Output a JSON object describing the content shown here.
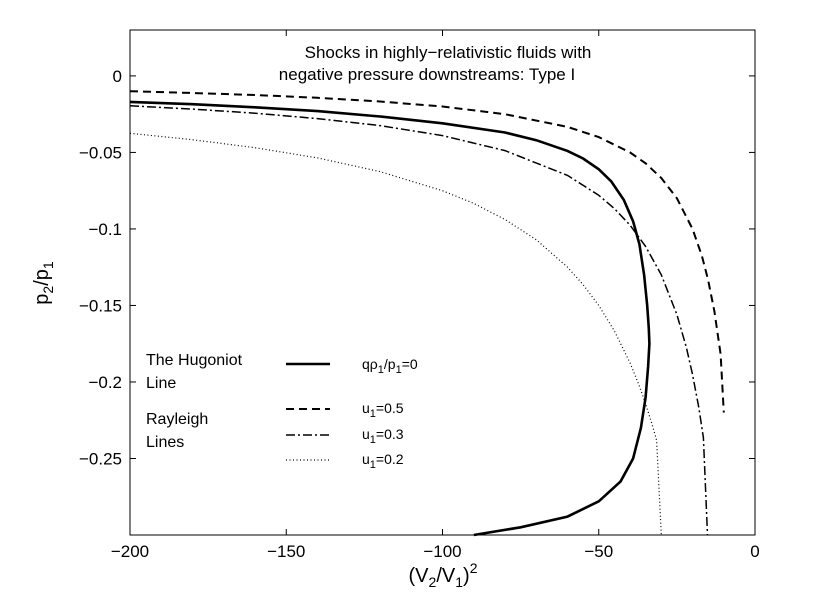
{
  "chart_data": {
    "type": "line",
    "title": [
      "Shocks in highly−relativistic fluids with",
      "negative pressure downstreams: Type I"
    ],
    "xlabel": {
      "main": "(V",
      "sub": "2",
      "mid": "/V",
      "sub2": "1",
      "end": ")",
      "sup": "2"
    },
    "ylabel": {
      "p": "p",
      "sub1": "2",
      "mid": "/p",
      "sub2": "1"
    },
    "xlim": [
      -200,
      0
    ],
    "ylim": [
      -0.3,
      0.03
    ],
    "xticks": [
      -200,
      -150,
      -100,
      -50,
      0
    ],
    "xtick_labels": [
      "−200",
      "−150",
      "−100",
      "−50",
      "0"
    ],
    "yticks": [
      0,
      -0.05,
      -0.1,
      -0.15,
      -0.2,
      -0.25
    ],
    "ytick_labels": [
      "0",
      "−0.05",
      "−0.1",
      "−0.15",
      "−0.2",
      "−0.25"
    ],
    "grid": false,
    "legend": {
      "group1": [
        "The Hugoniot",
        "Line"
      ],
      "group2": [
        "Rayleigh",
        "Lines"
      ]
    },
    "series": [
      {
        "name": "qρ₁/p₁=0",
        "label_parts": {
          "a": "qρ",
          "s1": "1",
          "b": "/p",
          "s2": "1",
          "c": "=0"
        },
        "style": "solid",
        "x": [
          -200,
          -180,
          -160,
          -140,
          -120,
          -100,
          -80,
          -70,
          -60,
          -55,
          -50,
          -46,
          -42,
          -39,
          -37,
          -35.5,
          -34.5,
          -34,
          -33.8,
          -34.2,
          -35,
          -36.5,
          -39,
          -43,
          -50,
          -60,
          -75,
          -90
        ],
        "y": [
          -0.017,
          -0.0185,
          -0.0205,
          -0.023,
          -0.0265,
          -0.031,
          -0.037,
          -0.042,
          -0.049,
          -0.054,
          -0.061,
          -0.069,
          -0.081,
          -0.095,
          -0.11,
          -0.13,
          -0.15,
          -0.165,
          -0.175,
          -0.19,
          -0.21,
          -0.23,
          -0.25,
          -0.265,
          -0.278,
          -0.288,
          -0.295,
          -0.3
        ]
      },
      {
        "name": "u₁=0.5",
        "label_parts": {
          "a": "u",
          "s1": "1",
          "b": "=0.5"
        },
        "style": "dashed",
        "x": [
          -200,
          -180,
          -160,
          -140,
          -120,
          -100,
          -80,
          -60,
          -50,
          -40,
          -35,
          -30,
          -25,
          -20,
          -17,
          -15,
          -13,
          -11,
          -10
        ],
        "y": [
          -0.01,
          -0.0112,
          -0.0125,
          -0.0143,
          -0.0167,
          -0.02,
          -0.025,
          -0.0333,
          -0.04,
          -0.05,
          -0.0571,
          -0.0667,
          -0.08,
          -0.1,
          -0.1176,
          -0.1333,
          -0.1538,
          -0.1818,
          -0.22
        ]
      },
      {
        "name": "u₁=0.3",
        "label_parts": {
          "a": "u",
          "s1": "1",
          "b": "=0.3"
        },
        "style": "dashdot",
        "x": [
          -200,
          -180,
          -160,
          -140,
          -120,
          -100,
          -80,
          -60,
          -50,
          -45,
          -40,
          -35,
          -30,
          -25,
          -22,
          -20,
          -18,
          -16.5,
          -15.2
        ],
        "y": [
          -0.0195,
          -0.0217,
          -0.0244,
          -0.0279,
          -0.0325,
          -0.039,
          -0.0488,
          -0.065,
          -0.078,
          -0.0867,
          -0.0975,
          -0.1114,
          -0.13,
          -0.156,
          -0.1773,
          -0.195,
          -0.2167,
          -0.2364,
          -0.3
        ]
      },
      {
        "name": "u₁=0.2",
        "label_parts": {
          "a": "u",
          "s1": "1",
          "b": "=0.2"
        },
        "style": "dotted",
        "x": [
          -200,
          -180,
          -160,
          -140,
          -120,
          -100,
          -90,
          -80,
          -70,
          -60,
          -55,
          -50,
          -45,
          -40,
          -37,
          -35,
          -33,
          -31.5,
          -30
        ],
        "y": [
          -0.0375,
          -0.0417,
          -0.0469,
          -0.0536,
          -0.0625,
          -0.075,
          -0.0833,
          -0.0938,
          -0.1071,
          -0.125,
          -0.1364,
          -0.15,
          -0.1667,
          -0.1875,
          -0.2027,
          -0.2143,
          -0.2273,
          -0.2381,
          -0.3
        ]
      }
    ]
  }
}
